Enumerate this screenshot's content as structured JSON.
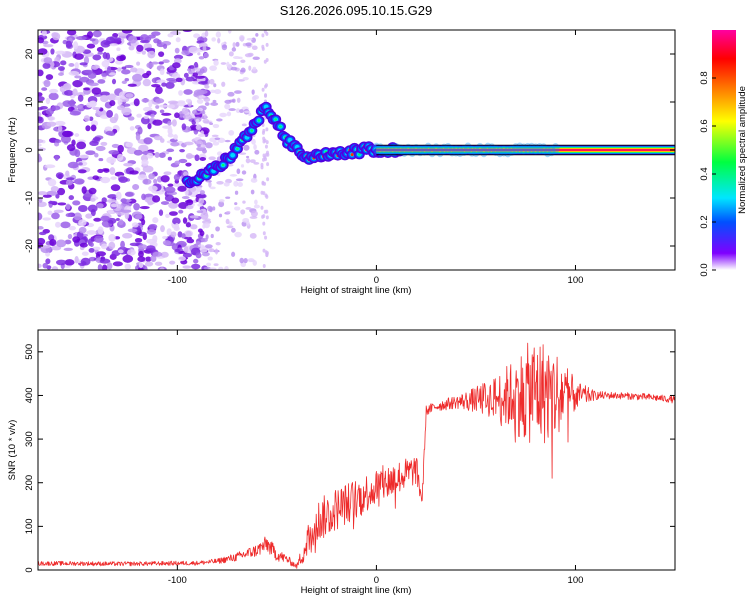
{
  "title": "S126.2026.095.10.15.G29",
  "chart_data": [
    {
      "type": "heatmap",
      "name": "spectrogram",
      "xlabel": "Height of straight line (km)",
      "ylabel": "Frequency (Hz)",
      "xlim": [
        -170,
        150
      ],
      "ylim": [
        -25,
        25
      ],
      "xticks": [
        -100,
        0,
        100
      ],
      "yticks": [
        -20,
        -10,
        0,
        10,
        20
      ],
      "colorbar": {
        "label": "Normalized spectral amplitude",
        "range": [
          0,
          1
        ],
        "ticks": [
          0.0,
          0.2,
          0.4,
          0.6,
          0.8
        ],
        "colors": [
          "#ffffff",
          "#7f00ff",
          "#0050ff",
          "#00e6ff",
          "#00ff40",
          "#ffff00",
          "#ff8000",
          "#ff0000",
          "#ff00a0"
        ]
      },
      "ridge": {
        "x": [
          -95,
          -85,
          -75,
          -65,
          -55,
          -45,
          -35,
          -25,
          -15,
          -5,
          0,
          10,
          150
        ],
        "freq": [
          -7,
          -5,
          -2,
          3,
          9,
          2,
          -2,
          -1,
          -0.5,
          0,
          0.2,
          0,
          0
        ]
      },
      "carrier": {
        "x_start": 0,
        "x_end": 150,
        "freq": 0,
        "amplitude": 1.0
      }
    },
    {
      "type": "line",
      "name": "snr",
      "xlabel": "Height of straight line (km)",
      "ylabel": "SNR (10 * v/v)",
      "xlim": [
        -170,
        150
      ],
      "ylim": [
        0,
        550
      ],
      "xticks": [
        -100,
        0,
        100
      ],
      "yticks": [
        0,
        100,
        200,
        300,
        400,
        500
      ],
      "color": "#ee2b2b",
      "series": [
        {
          "name": "SNR",
          "x": [
            -170,
            -150,
            -130,
            -110,
            -90,
            -80,
            -70,
            -60,
            -55,
            -50,
            -45,
            -40,
            -35,
            -30,
            -25,
            -20,
            -10,
            0,
            10,
            20,
            23,
            25,
            30,
            40,
            50,
            60,
            70,
            80,
            90,
            100,
            110,
            120,
            130,
            140,
            150
          ],
          "y": [
            15,
            15,
            14,
            15,
            16,
            20,
            30,
            45,
            60,
            35,
            25,
            8,
            60,
            110,
            125,
            140,
            165,
            190,
            210,
            230,
            160,
            365,
            375,
            385,
            390,
            395,
            400,
            410,
            405,
            400,
            400,
            400,
            398,
            395,
            390
          ],
          "noise": [
            5,
            5,
            5,
            5,
            5,
            6,
            10,
            15,
            20,
            15,
            10,
            5,
            40,
            50,
            50,
            50,
            45,
            45,
            40,
            35,
            20,
            12,
            12,
            15,
            30,
            50,
            90,
            130,
            110,
            35,
            10,
            8,
            8,
            8,
            8
          ]
        }
      ]
    }
  ]
}
